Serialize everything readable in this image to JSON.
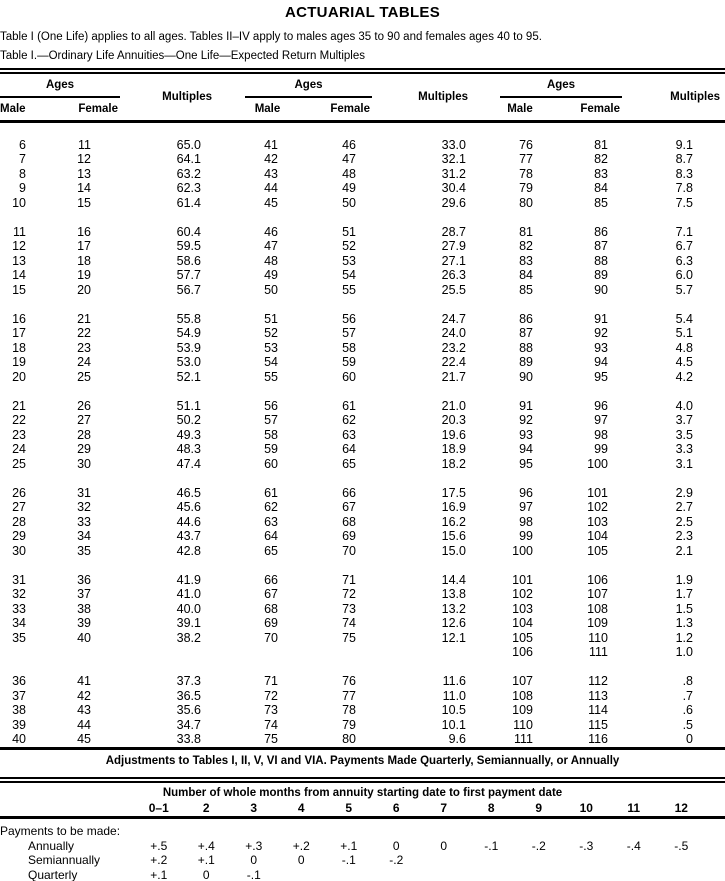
{
  "title": "ACTUARIAL TABLES",
  "intro": "Table I (One Life) applies to all ages. Tables II–IV apply to males ages 35 to 90 and females ages 40 to 95.",
  "table_caption": "Table I.—Ordinary Life Annuities—One Life—Expected Return Multiples",
  "table1": {
    "age_header": "Ages",
    "male_header": "Male",
    "female_header": "Female",
    "multiples_header": "Multiples",
    "blocks": [
      {
        "g1": [
          [
            "6",
            "11",
            "65.0"
          ],
          [
            "7",
            "12",
            "64.1"
          ],
          [
            "8",
            "13",
            "63.2"
          ],
          [
            "9",
            "14",
            "62.3"
          ],
          [
            "10",
            "15",
            "61.4"
          ]
        ],
        "g2": [
          [
            "41",
            "46",
            "33.0"
          ],
          [
            "42",
            "47",
            "32.1"
          ],
          [
            "43",
            "48",
            "31.2"
          ],
          [
            "44",
            "49",
            "30.4"
          ],
          [
            "45",
            "50",
            "29.6"
          ]
        ],
        "g3": [
          [
            "76",
            "81",
            "9.1"
          ],
          [
            "77",
            "82",
            "8.7"
          ],
          [
            "78",
            "83",
            "8.3"
          ],
          [
            "79",
            "84",
            "7.8"
          ],
          [
            "80",
            "85",
            "7.5"
          ]
        ]
      },
      {
        "g1": [
          [
            "11",
            "16",
            "60.4"
          ],
          [
            "12",
            "17",
            "59.5"
          ],
          [
            "13",
            "18",
            "58.6"
          ],
          [
            "14",
            "19",
            "57.7"
          ],
          [
            "15",
            "20",
            "56.7"
          ]
        ],
        "g2": [
          [
            "46",
            "51",
            "28.7"
          ],
          [
            "47",
            "52",
            "27.9"
          ],
          [
            "48",
            "53",
            "27.1"
          ],
          [
            "49",
            "54",
            "26.3"
          ],
          [
            "50",
            "55",
            "25.5"
          ]
        ],
        "g3": [
          [
            "81",
            "86",
            "7.1"
          ],
          [
            "82",
            "87",
            "6.7"
          ],
          [
            "83",
            "88",
            "6.3"
          ],
          [
            "84",
            "89",
            "6.0"
          ],
          [
            "85",
            "90",
            "5.7"
          ]
        ]
      },
      {
        "g1": [
          [
            "16",
            "21",
            "55.8"
          ],
          [
            "17",
            "22",
            "54.9"
          ],
          [
            "18",
            "23",
            "53.9"
          ],
          [
            "19",
            "24",
            "53.0"
          ],
          [
            "20",
            "25",
            "52.1"
          ]
        ],
        "g2": [
          [
            "51",
            "56",
            "24.7"
          ],
          [
            "52",
            "57",
            "24.0"
          ],
          [
            "53",
            "58",
            "23.2"
          ],
          [
            "54",
            "59",
            "22.4"
          ],
          [
            "55",
            "60",
            "21.7"
          ]
        ],
        "g3": [
          [
            "86",
            "91",
            "5.4"
          ],
          [
            "87",
            "92",
            "5.1"
          ],
          [
            "88",
            "93",
            "4.8"
          ],
          [
            "89",
            "94",
            "4.5"
          ],
          [
            "90",
            "95",
            "4.2"
          ]
        ]
      },
      {
        "g1": [
          [
            "21",
            "26",
            "51.1"
          ],
          [
            "22",
            "27",
            "50.2"
          ],
          [
            "23",
            "28",
            "49.3"
          ],
          [
            "24",
            "29",
            "48.3"
          ],
          [
            "25",
            "30",
            "47.4"
          ]
        ],
        "g2": [
          [
            "56",
            "61",
            "21.0"
          ],
          [
            "57",
            "62",
            "20.3"
          ],
          [
            "58",
            "63",
            "19.6"
          ],
          [
            "59",
            "64",
            "18.9"
          ],
          [
            "60",
            "65",
            "18.2"
          ]
        ],
        "g3": [
          [
            "91",
            "96",
            "4.0"
          ],
          [
            "92",
            "97",
            "3.7"
          ],
          [
            "93",
            "98",
            "3.5"
          ],
          [
            "94",
            "99",
            "3.3"
          ],
          [
            "95",
            "100",
            "3.1"
          ]
        ]
      },
      {
        "g1": [
          [
            "26",
            "31",
            "46.5"
          ],
          [
            "27",
            "32",
            "45.6"
          ],
          [
            "28",
            "33",
            "44.6"
          ],
          [
            "29",
            "34",
            "43.7"
          ],
          [
            "30",
            "35",
            "42.8"
          ]
        ],
        "g2": [
          [
            "61",
            "66",
            "17.5"
          ],
          [
            "62",
            "67",
            "16.9"
          ],
          [
            "63",
            "68",
            "16.2"
          ],
          [
            "64",
            "69",
            "15.6"
          ],
          [
            "65",
            "70",
            "15.0"
          ]
        ],
        "g3": [
          [
            "96",
            "101",
            "2.9"
          ],
          [
            "97",
            "102",
            "2.7"
          ],
          [
            "98",
            "103",
            "2.5"
          ],
          [
            "99",
            "104",
            "2.3"
          ],
          [
            "100",
            "105",
            "2.1"
          ]
        ]
      },
      {
        "g1": [
          [
            "31",
            "36",
            "41.9"
          ],
          [
            "32",
            "37",
            "41.0"
          ],
          [
            "33",
            "38",
            "40.0"
          ],
          [
            "34",
            "39",
            "39.1"
          ],
          [
            "35",
            "40",
            "38.2"
          ]
        ],
        "g2": [
          [
            "66",
            "71",
            "14.4"
          ],
          [
            "67",
            "72",
            "13.8"
          ],
          [
            "68",
            "73",
            "13.2"
          ],
          [
            "69",
            "74",
            "12.6"
          ],
          [
            "70",
            "75",
            "12.1"
          ]
        ],
        "g3": [
          [
            "101",
            "106",
            "1.9"
          ],
          [
            "102",
            "107",
            "1.7"
          ],
          [
            "103",
            "108",
            "1.5"
          ],
          [
            "104",
            "109",
            "1.3"
          ],
          [
            "105",
            "110",
            "1.2"
          ],
          [
            "106",
            "111",
            "1.0"
          ]
        ]
      },
      {
        "g1": [
          [
            "36",
            "41",
            "37.3"
          ],
          [
            "37",
            "42",
            "36.5"
          ],
          [
            "38",
            "43",
            "35.6"
          ],
          [
            "39",
            "44",
            "34.7"
          ],
          [
            "40",
            "45",
            "33.8"
          ]
        ],
        "g2": [
          [
            "71",
            "76",
            "11.6"
          ],
          [
            "72",
            "77",
            "11.0"
          ],
          [
            "73",
            "78",
            "10.5"
          ],
          [
            "74",
            "79",
            "10.1"
          ],
          [
            "75",
            "80",
            "9.6"
          ]
        ],
        "g3": [
          [
            "107",
            "112",
            ".8"
          ],
          [
            "108",
            "113",
            ".7"
          ],
          [
            "109",
            "114",
            ".6"
          ],
          [
            "110",
            "115",
            ".5"
          ],
          [
            "111",
            "116",
            "0"
          ]
        ]
      }
    ]
  },
  "adjustments": {
    "title": "Adjustments to Tables I, II, V, VI and VIA. Payments Made Quarterly, Semiannually, or Annually",
    "months_header": "Number of whole months from annuity starting date to first payment date",
    "month_cols": [
      "0–1",
      "2",
      "3",
      "4",
      "5",
      "6",
      "7",
      "8",
      "9",
      "10",
      "11",
      "12"
    ],
    "payments_lead": "Payments to be made:",
    "rows": [
      {
        "label": "Annually",
        "values": [
          "+.5",
          "+.4",
          "+.3",
          "+.2",
          "+.1",
          "0",
          "0",
          "-.1",
          "-.2",
          "-.3",
          "-.4",
          "-.5"
        ]
      },
      {
        "label": "Semiannually",
        "values": [
          "+.2",
          "+.1",
          "0",
          "0",
          "-.1",
          "-.2",
          "",
          "",
          "",
          "",
          "",
          ""
        ]
      },
      {
        "label": "Quarterly",
        "values": [
          "+.1",
          "0",
          "-.1",
          "",
          "",
          "",
          "",
          "",
          "",
          "",
          "",
          ""
        ]
      }
    ]
  }
}
